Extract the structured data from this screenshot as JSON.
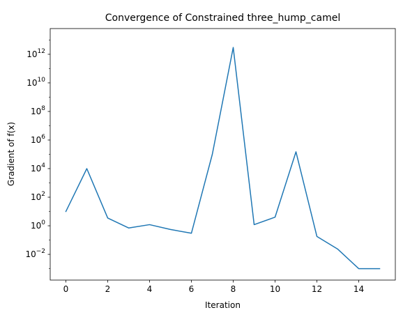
{
  "chart_data": {
    "type": "line",
    "title": "Convergence of Constrained three_hump_camel",
    "xlabel": "Iteration",
    "ylabel": "Gradient of f(x)",
    "yscale": "log",
    "x": [
      0,
      1,
      2,
      3,
      4,
      5,
      6,
      7,
      8,
      9,
      10,
      11,
      12,
      13,
      14,
      15
    ],
    "series": [
      {
        "name": "",
        "values": [
          10,
          10000,
          3.5,
          0.7,
          1.2,
          0.55,
          0.3,
          100000,
          3000000000000,
          1.2,
          4,
          150000,
          0.18,
          0.023,
          0.001,
          0.001
        ]
      }
    ],
    "xlim": [
      -0.75,
      15.75
    ],
    "ylim_exp": [
      -3.8,
      13.8
    ],
    "x_ticks": [
      0,
      2,
      4,
      6,
      8,
      10,
      12,
      14
    ],
    "y_tick_exponents": [
      -2,
      0,
      2,
      4,
      6,
      8,
      10,
      12
    ],
    "y_tick_base": "10",
    "grid": false,
    "line_color": "#1f77b4"
  }
}
